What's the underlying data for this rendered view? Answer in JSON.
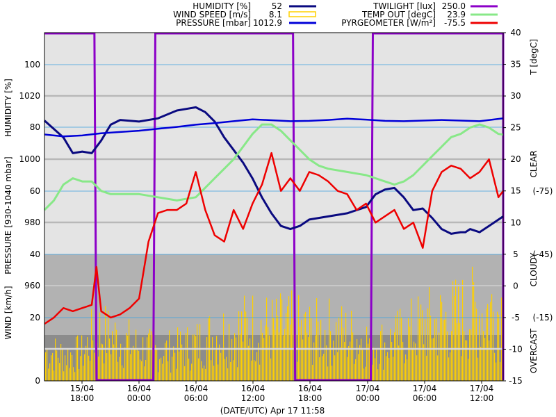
{
  "chart_data": {
    "type": "line",
    "title": "",
    "xlabel": "(DATE/UTC) Apr 17 11:58",
    "x_ticks": [
      {
        "top": "15/04",
        "bottom": "18:00"
      },
      {
        "top": "16/04",
        "bottom": "00:00"
      },
      {
        "top": "16/04",
        "bottom": "06:00"
      },
      {
        "top": "16/04",
        "bottom": "12:00"
      },
      {
        "top": "16/04",
        "bottom": "18:00"
      },
      {
        "top": "17/04",
        "bottom": "00:00"
      },
      {
        "top": "17/04",
        "bottom": "06:00"
      },
      {
        "top": "17/04",
        "bottom": "12:00"
      }
    ],
    "x_range_hours": [
      -4.0,
      44.5
    ],
    "left_axes": {
      "humidity": {
        "label": "HUMIDITY [%]",
        "ticks": [
          "100",
          "80",
          "60",
          "40"
        ],
        "range": [
          40,
          100
        ]
      },
      "pressure": {
        "label": "PRESSURE [930-1040 mbar]",
        "ticks": [
          "1020",
          "1000",
          "980",
          "960"
        ],
        "range": [
          930,
          1040
        ]
      },
      "wind": {
        "label": "WIND [km/h]",
        "ticks": [
          "40",
          "20",
          "0"
        ],
        "range": [
          0,
          40
        ]
      }
    },
    "right_axes": {
      "temperature": {
        "label": "T [degC]",
        "ticks": [
          "40",
          "35",
          "30",
          "25",
          "20",
          "15",
          "10",
          "5",
          "0",
          "-5",
          "-10",
          "-15"
        ],
        "range": [
          -15,
          40
        ]
      },
      "pyrgeometer_ticks": [
        "(-75)",
        "(-45)",
        "(-15)"
      ],
      "sky_labels": [
        "CLEAR",
        "CLOUDY",
        "OVERCAST"
      ]
    },
    "legend": {
      "left": [
        {
          "name": "HUMIDITY [%]",
          "value": "52",
          "color": "#0a0a80",
          "style": "line"
        },
        {
          "name": "WIND SPEED [m/s]",
          "value": "8.1",
          "color": "#ffd000",
          "style": "box"
        },
        {
          "name": "PRESSURE [mbar]",
          "value": "1012.9",
          "color": "#0000d8",
          "style": "line"
        }
      ],
      "right": [
        {
          "name": "TWILIGHT [lux]",
          "value": "250.0",
          "color": "#8c00c8",
          "style": "line"
        },
        {
          "name": "TEMP OUT [degC]",
          "value": "23.9",
          "color": "#88e888",
          "style": "line"
        },
        {
          "name": "PYRGEOMETER [W/m²]",
          "value": "-75.5",
          "color": "#ee0000",
          "style": "line"
        }
      ]
    },
    "twilight": {
      "bright_periods_hours": [
        [
          -4.0,
          1.5
        ],
        [
          7.5,
          22.5
        ],
        [
          30.5,
          44.5
        ]
      ],
      "level": "high/low"
    },
    "series": [
      {
        "name": "HUMIDITY [%]",
        "color": "#0a0a80",
        "x": [
          -4,
          -2,
          -1,
          0,
          1,
          2,
          3,
          4,
          6,
          8,
          10,
          11,
          12,
          13,
          14,
          15,
          16,
          17,
          18,
          19,
          20,
          21,
          22,
          23,
          24,
          26,
          28,
          30,
          31,
          32,
          33,
          34,
          35,
          36,
          37,
          38,
          39,
          40,
          40.5,
          41,
          42,
          43,
          44.5
        ],
        "y": [
          82.3,
          77,
          72,
          72.5,
          72,
          76,
          81,
          82.5,
          82,
          83,
          85.5,
          86,
          86.5,
          85,
          82,
          77,
          73,
          69,
          64,
          58,
          53,
          49,
          48,
          49,
          51,
          52,
          53,
          55,
          59,
          60.5,
          61,
          58,
          54,
          54.5,
          51.5,
          48,
          46.5,
          47,
          47,
          48,
          47,
          49,
          52
        ]
      },
      {
        "name": "PRESSURE [mbar]",
        "color": "#0000d8",
        "x": [
          -4,
          -2,
          0,
          2,
          4,
          6,
          8,
          10,
          12,
          14,
          16,
          18,
          20,
          22,
          24,
          26,
          28,
          30,
          32,
          34,
          36,
          38,
          40,
          42,
          44.5
        ],
        "y": [
          1007.8,
          1007.2,
          1007.5,
          1008.2,
          1008.6,
          1009.0,
          1009.6,
          1010.2,
          1010.9,
          1011.4,
          1012.0,
          1012.6,
          1012.3,
          1012.0,
          1012.1,
          1012.4,
          1012.8,
          1012.5,
          1012.1,
          1012.0,
          1012.2,
          1012.4,
          1012.2,
          1012.0,
          1012.9
        ]
      },
      {
        "name": "TEMP OUT [degC]",
        "color": "#88e888",
        "x": [
          -4,
          -3,
          -2,
          -1,
          0,
          1,
          2,
          3,
          4,
          6,
          8,
          10,
          12,
          13,
          14,
          15,
          16,
          17,
          18,
          19,
          20,
          21,
          22,
          23,
          24,
          25,
          26,
          28,
          30,
          31,
          32,
          33,
          34,
          35,
          36,
          37,
          38,
          39,
          40,
          41,
          42,
          43,
          44,
          44.5
        ],
        "y": [
          12,
          13.5,
          16,
          17,
          16.5,
          16.5,
          15,
          14.5,
          14.5,
          14.5,
          14,
          13.5,
          14,
          15.5,
          17,
          18.5,
          20,
          22,
          24,
          25.5,
          25.5,
          24.5,
          23,
          21.5,
          20,
          19,
          18.5,
          18,
          17.5,
          17,
          16.5,
          16,
          16.5,
          17.5,
          19,
          20.5,
          22,
          23.5,
          24,
          25,
          25.5,
          25,
          24,
          23.9
        ]
      },
      {
        "name": "PYRGEOMETER [W/m²]",
        "color": "#ee0000",
        "x": [
          -4,
          -3,
          -2,
          -1,
          0,
          1,
          1.5,
          2,
          3,
          4,
          5,
          6,
          7,
          8,
          9,
          10,
          11,
          12,
          13,
          14,
          15,
          16,
          17,
          18,
          19,
          20,
          21,
          22,
          23,
          24,
          25,
          26,
          27,
          28,
          29,
          30,
          31,
          32,
          33,
          34,
          35,
          36,
          37,
          38,
          39,
          40,
          41,
          42,
          43,
          44,
          44.5
        ],
        "y": [
          -6,
          -5,
          -3.5,
          -4,
          -3.5,
          -3,
          3,
          -4,
          -5,
          -4.5,
          -3.5,
          -2,
          7,
          11.5,
          12,
          12,
          13,
          18,
          12,
          8,
          7,
          12,
          9,
          13,
          16,
          21,
          15,
          17,
          15,
          18,
          17.5,
          16.5,
          15,
          14.5,
          12,
          13,
          10,
          11,
          12,
          9,
          10,
          6,
          15,
          18,
          19,
          18.5,
          17,
          18,
          20,
          14,
          15
        ]
      }
    ],
    "wind_bars_note": "dense yellow bars per sample",
    "wind_envelope": {
      "x": [
        -4,
        -2,
        0,
        1.5,
        2,
        4,
        6,
        8,
        10,
        12,
        14,
        16,
        18,
        20,
        22,
        24,
        26,
        28,
        30,
        32,
        34,
        36,
        38,
        40,
        42,
        44.5
      ],
      "y": [
        16,
        14,
        15,
        28,
        26,
        22,
        18,
        16,
        17,
        20,
        25,
        27,
        30,
        28,
        29,
        26,
        27,
        25,
        22,
        20,
        25,
        30,
        32,
        35,
        38,
        39
      ]
    }
  }
}
